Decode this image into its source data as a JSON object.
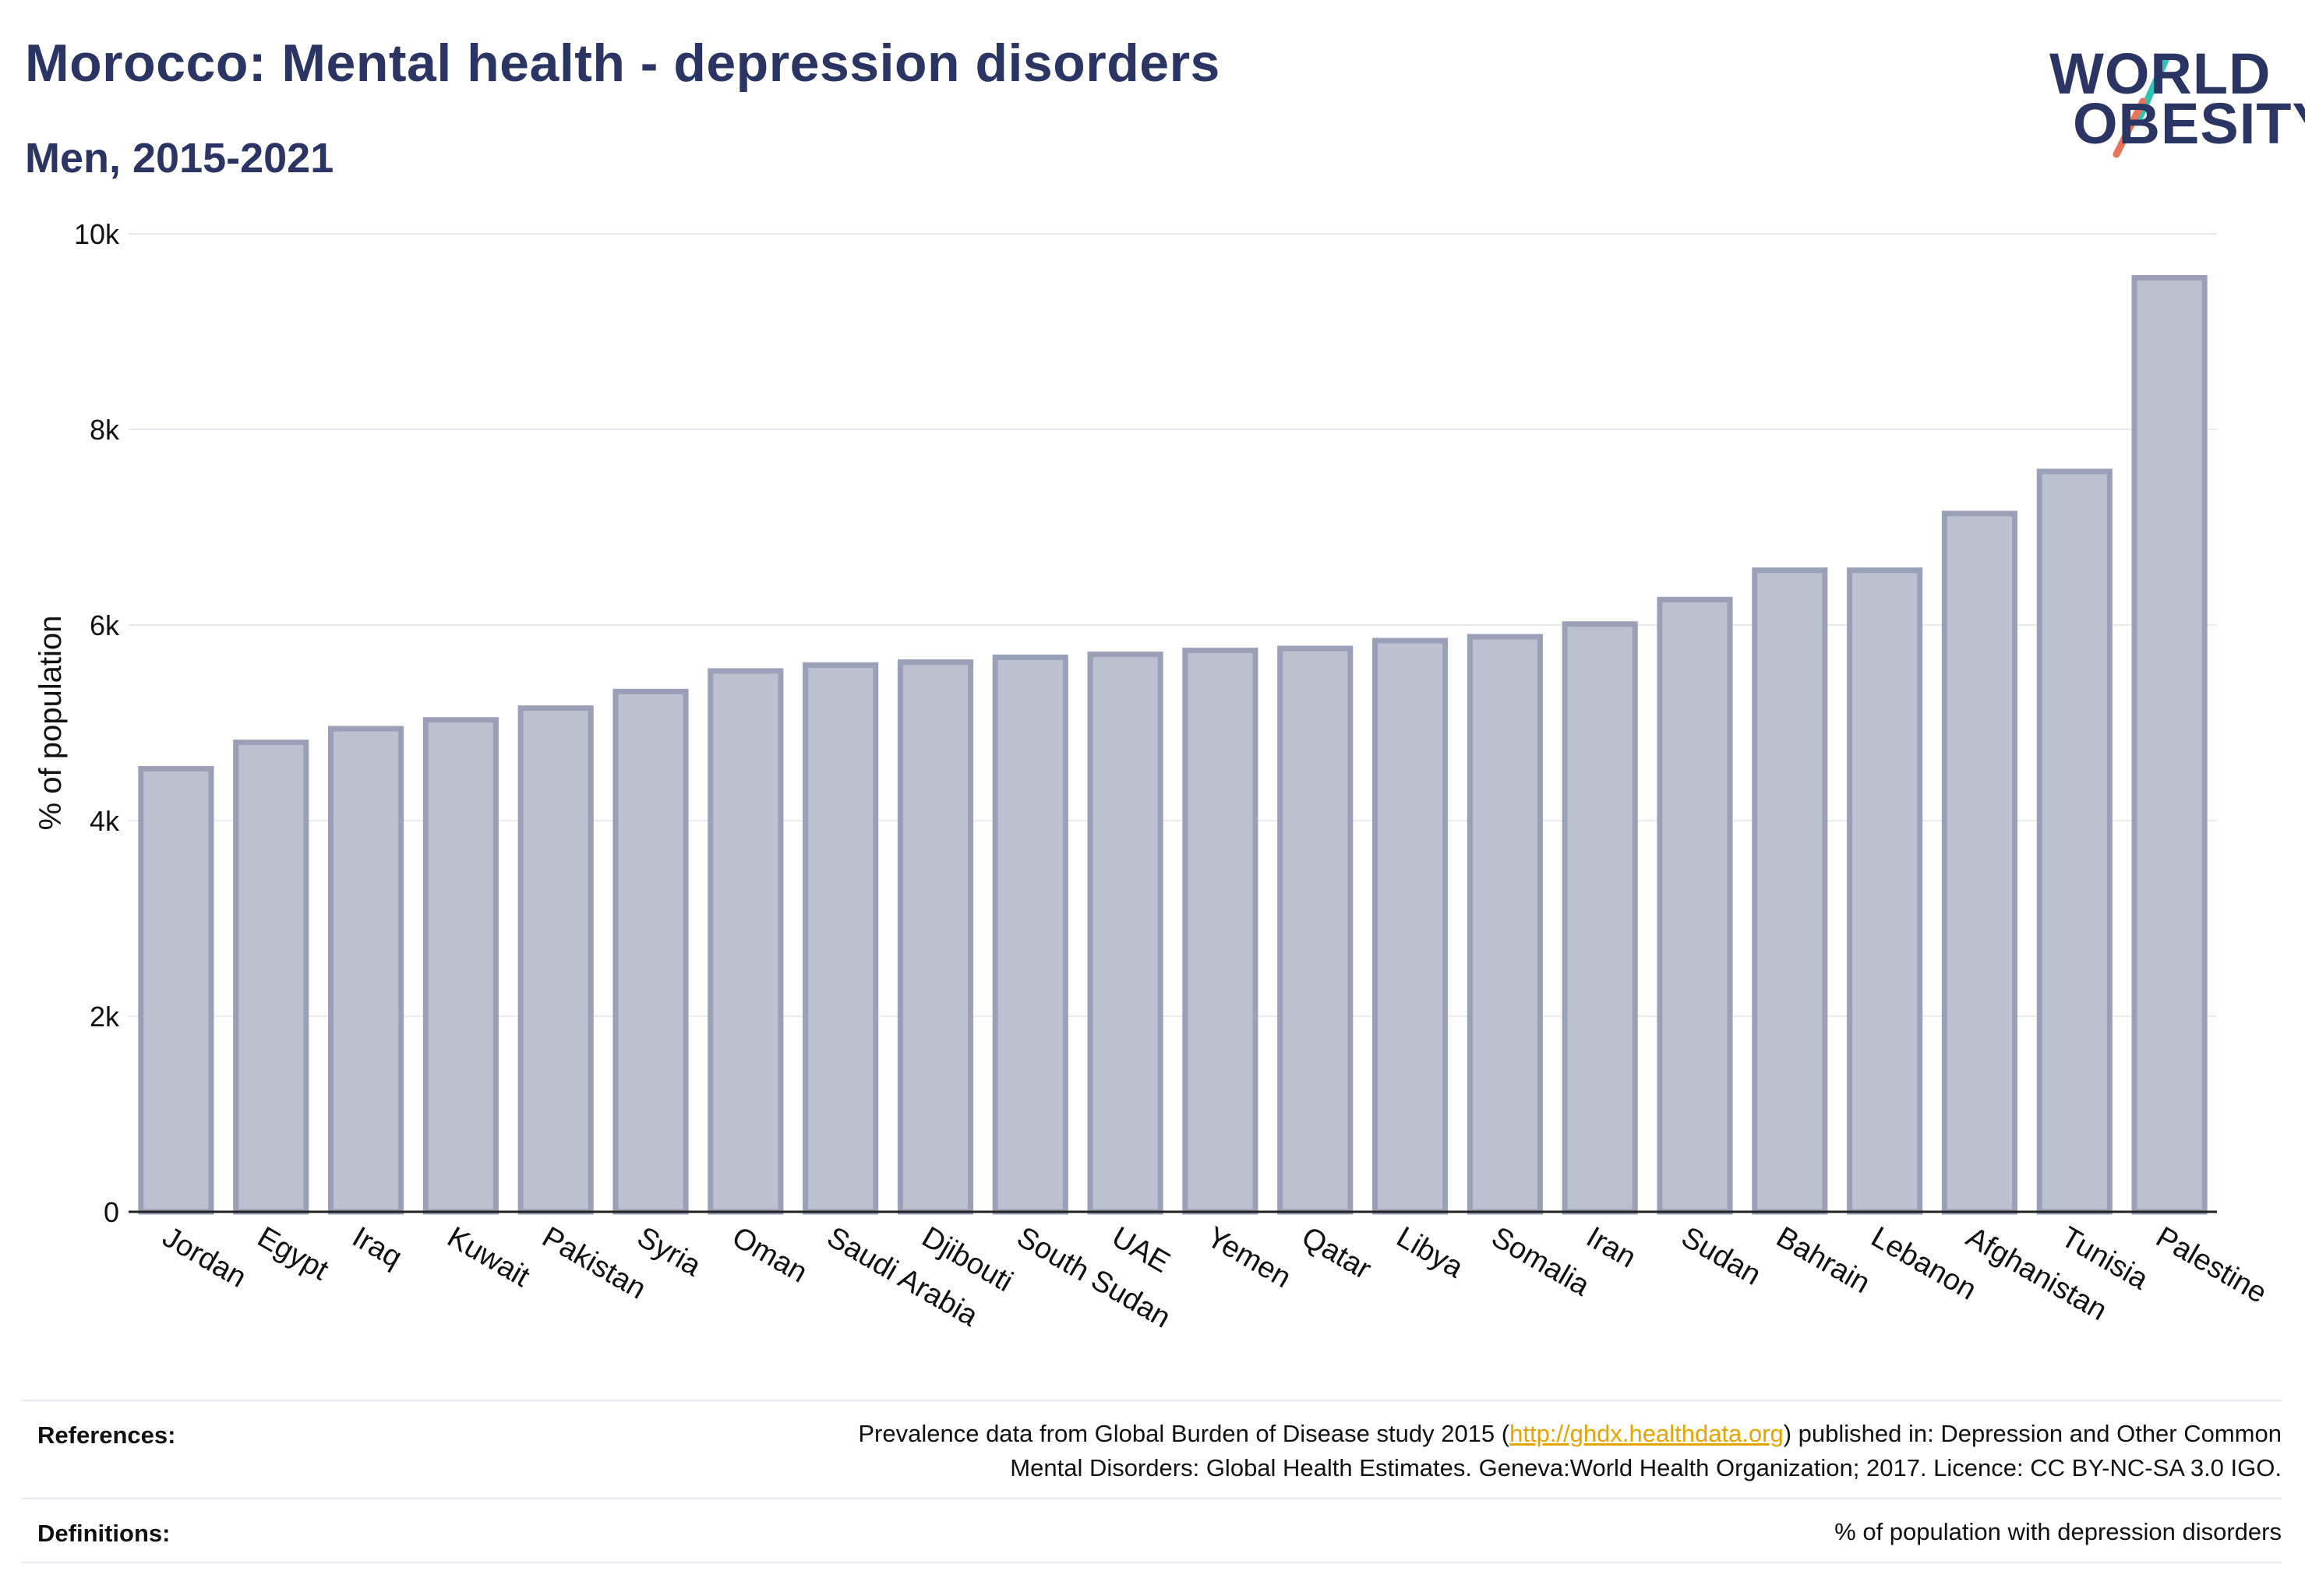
{
  "header": {
    "title": "Morocco: Mental health - depression disorders",
    "subtitle": "Men, 2015-2021"
  },
  "logo": {
    "line1": "WORLD",
    "line2": "OBESITY",
    "text_color": "#2a3563",
    "slash_colors": [
      "#2ec4b6",
      "#e8735a"
    ]
  },
  "chart_data": {
    "type": "bar",
    "categories": [
      "Jordan",
      "Egypt",
      "Iraq",
      "Kuwait",
      "Pakistan",
      "Syria",
      "Oman",
      "Saudi Arabia",
      "Djibouti",
      "South Sudan",
      "UAE",
      "Yemen",
      "Qatar",
      "Libya",
      "Somalia",
      "Iran",
      "Sudan",
      "Bahrain",
      "Lebanon",
      "Afghanistan",
      "Tunisia",
      "Palestine"
    ],
    "values": [
      4530,
      4800,
      4940,
      5030,
      5150,
      5320,
      5530,
      5590,
      5620,
      5670,
      5700,
      5740,
      5760,
      5840,
      5880,
      6010,
      6260,
      6560,
      6560,
      7140,
      7570,
      9550
    ],
    "ylabel": "% of population",
    "xlabel": "",
    "ylim": [
      0,
      10000
    ],
    "y_ticks": [
      0,
      2000,
      4000,
      6000,
      8000,
      10000
    ],
    "y_tick_labels": [
      "0",
      "2k",
      "4k",
      "6k",
      "8k",
      "10k"
    ],
    "grid": true,
    "bar_fill": "#bcc0cf",
    "bar_stroke": "#9aa0b8"
  },
  "footer": {
    "references_label": "References:",
    "references_text_1a": "Prevalence data from Global Burden of Disease study 2015 (",
    "references_link": "http://ghdx.healthdata.org",
    "references_text_1b": ") published in: Depression and Other Common",
    "references_text_2": "Mental Disorders: Global Health Estimates. Geneva:World Health Organization; 2017. Licence: CC BY-NC-SA 3.0 IGO.",
    "definitions_label": "Definitions:",
    "definitions_text": "% of population with depression disorders"
  }
}
